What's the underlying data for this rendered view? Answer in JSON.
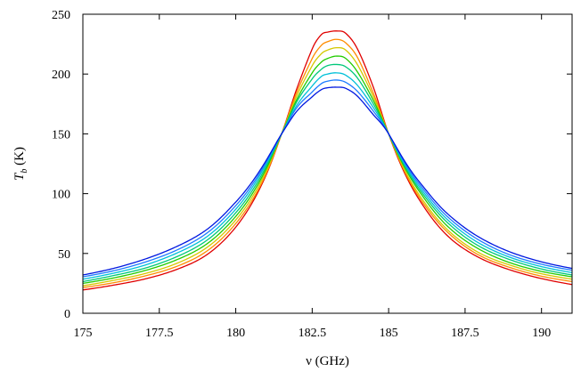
{
  "chart_data": {
    "type": "line",
    "title": "",
    "xlabel": "ν (GHz)",
    "ylabel_main": "T",
    "ylabel_sub": "b",
    "ylabel_unit": " (K)",
    "xlim": [
      175,
      191
    ],
    "ylim": [
      0,
      250
    ],
    "xticks": [
      175,
      177.5,
      180,
      182.5,
      185,
      187.5,
      190
    ],
    "xtick_labels": [
      "175",
      "177.5",
      "180",
      "182.5",
      "185",
      "187.5",
      "190"
    ],
    "yticks": [
      0,
      50,
      100,
      150,
      200,
      250
    ],
    "ytick_labels": [
      "0",
      "50",
      "100",
      "150",
      "200",
      "250"
    ],
    "grid": false,
    "legend": "none",
    "line_center_ghz": 183.3,
    "x": [
      175,
      176,
      177,
      178,
      179,
      180,
      181,
      181.5,
      182,
      182.5,
      182.8,
      183,
      183.3,
      183.6,
      184,
      184.5,
      185,
      186,
      187,
      188,
      189,
      190,
      191
    ],
    "series": [
      {
        "color": "#e00000",
        "values": [
          19.5,
          23.5,
          28.5,
          36,
          48,
          72,
          116,
          150,
          188,
          221,
          233,
          235,
          236,
          234,
          220,
          189,
          150,
          95,
          63,
          46,
          36,
          29,
          24
        ]
      },
      {
        "color": "#ff8c00",
        "values": [
          21.5,
          25.5,
          31,
          38.5,
          51,
          75,
          117,
          150,
          185,
          213,
          224,
          227,
          229,
          226,
          213,
          184,
          150,
          97,
          66,
          48,
          38,
          31,
          26.5
        ]
      },
      {
        "color": "#d4c800",
        "values": [
          23,
          27.5,
          33,
          41,
          54,
          78,
          119,
          150,
          182,
          207,
          217,
          220,
          222,
          220,
          207,
          181,
          150,
          99,
          68,
          50,
          40,
          33,
          28.5
        ]
      },
      {
        "color": "#22cc00",
        "values": [
          25,
          29.5,
          35.5,
          44,
          57,
          81,
          121,
          150,
          179,
          201,
          210,
          213,
          215,
          213,
          201,
          178,
          150,
          102,
          71,
          53,
          42,
          35,
          30.5
        ]
      },
      {
        "color": "#00c87a",
        "values": [
          26.5,
          31.5,
          37.5,
          46.5,
          60,
          84,
          123,
          150,
          177,
          196,
          204,
          207,
          208,
          206,
          196,
          175,
          150,
          104,
          74,
          55.5,
          44.5,
          37,
          32
        ]
      },
      {
        "color": "#00c0d8",
        "values": [
          28.5,
          33.5,
          40,
          49.5,
          63,
          87,
          125,
          150,
          174,
          190,
          198,
          200,
          201,
          199,
          190,
          172,
          150,
          106,
          76.5,
          58,
          46.5,
          39,
          34
        ]
      },
      {
        "color": "#1e7cff",
        "values": [
          30.5,
          35.5,
          42.5,
          52,
          66,
          90,
          126.5,
          150,
          172,
          185,
          192,
          194,
          195,
          193,
          185,
          169,
          150,
          108,
          79,
          60.5,
          48.5,
          41,
          36
        ]
      },
      {
        "color": "#0018e0",
        "values": [
          32,
          37.5,
          45,
          55,
          69,
          93,
          128,
          150,
          169,
          181,
          187,
          188.5,
          189,
          188,
          181,
          166,
          150,
          110,
          81.5,
          63,
          51,
          43,
          37.5
        ]
      }
    ]
  }
}
